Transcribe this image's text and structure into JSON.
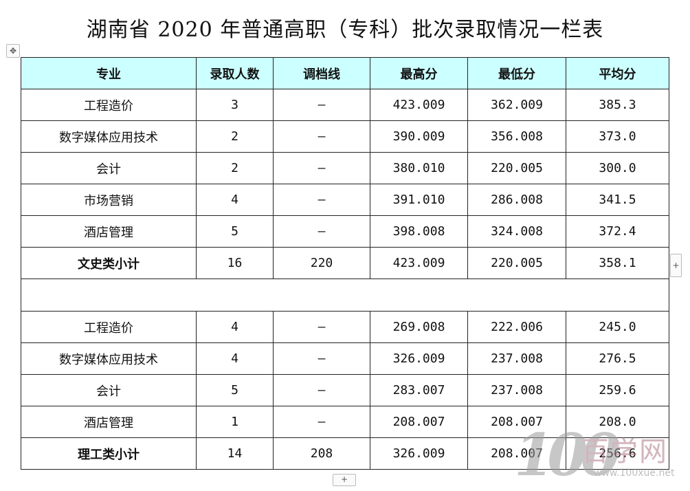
{
  "title": "湖南省 2020 年普通高职（专科）批次录取情况一栏表",
  "headers": [
    "专业",
    "录取人数",
    "调档线",
    "最高分",
    "最低分",
    "平均分"
  ],
  "section1": {
    "rows": [
      {
        "major": "工程造价",
        "count": "3",
        "line": "–",
        "max": "423.009",
        "min": "362.009",
        "avg": "385.3"
      },
      {
        "major": "数字媒体应用技术",
        "count": "2",
        "line": "–",
        "max": "390.009",
        "min": "356.008",
        "avg": "373.0"
      },
      {
        "major": "会计",
        "count": "2",
        "line": "–",
        "max": "380.010",
        "min": "220.005",
        "avg": "300.0"
      },
      {
        "major": "市场营销",
        "count": "4",
        "line": "–",
        "max": "391.010",
        "min": "286.008",
        "avg": "341.5"
      },
      {
        "major": "酒店管理",
        "count": "5",
        "line": "–",
        "max": "398.008",
        "min": "324.008",
        "avg": "372.4"
      }
    ],
    "subtotal": {
      "major": "文史类小计",
      "count": "16",
      "line": "220",
      "max": "423.009",
      "min": "220.005",
      "avg": "358.1"
    }
  },
  "section2": {
    "rows": [
      {
        "major": "工程造价",
        "count": "4",
        "line": "–",
        "max": "269.008",
        "min": "222.006",
        "avg": "245.0"
      },
      {
        "major": "数字媒体应用技术",
        "count": "4",
        "line": "–",
        "max": "326.009",
        "min": "237.008",
        "avg": "276.5"
      },
      {
        "major": "会计",
        "count": "5",
        "line": "–",
        "max": "283.007",
        "min": "237.008",
        "avg": "259.6"
      },
      {
        "major": "酒店管理",
        "count": "1",
        "line": "–",
        "max": "208.007",
        "min": "208.007",
        "avg": "208.0"
      }
    ],
    "subtotal": {
      "major": "理工类小计",
      "count": "14",
      "line": "208",
      "max": "326.009",
      "min": "208.007",
      "avg": "256.6"
    }
  },
  "controls": {
    "move_icon": "✥",
    "add_icon": "+"
  },
  "watermark": {
    "digits": "100",
    "name": "百学网",
    "url": "www.100xue.net"
  }
}
